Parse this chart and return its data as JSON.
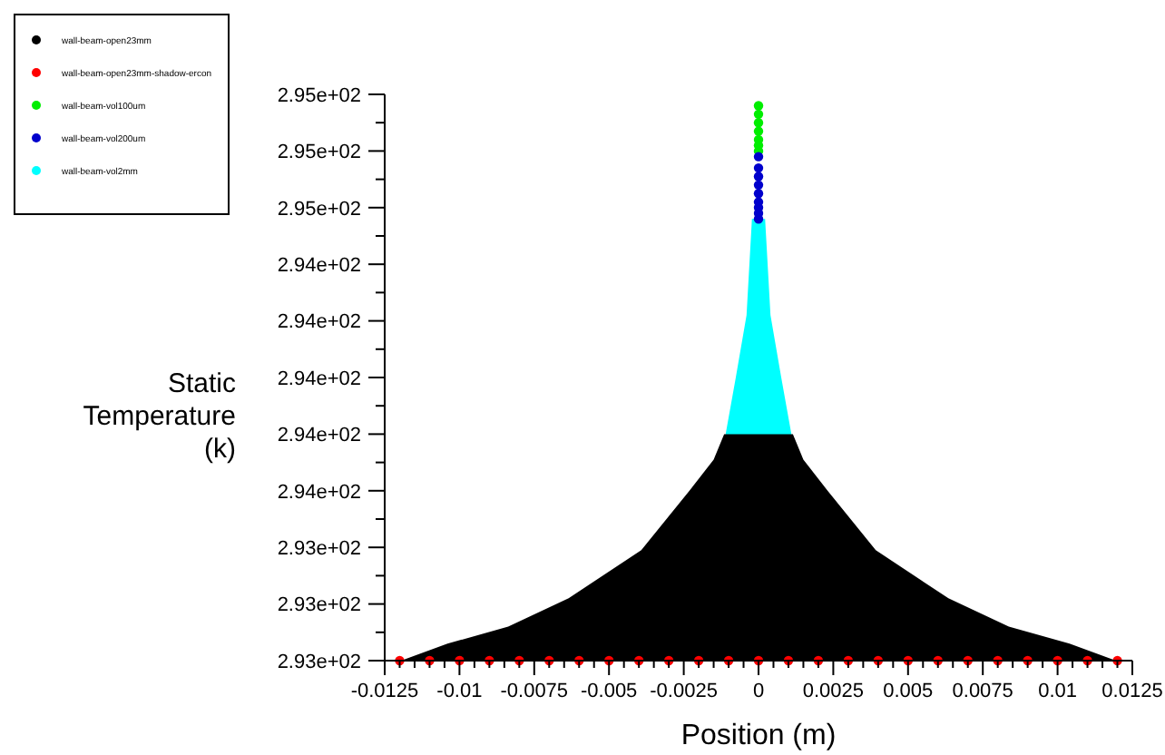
{
  "chart_data": {
    "type": "scatter",
    "xlabel": "Position (m)",
    "ylabel": "Static Temperature (k)",
    "legend": "top left",
    "grid": false,
    "xlim": [
      -0.0125,
      0.0125
    ],
    "xticks": [
      -0.0125,
      -0.01,
      -0.0075,
      -0.005,
      -0.0025,
      0,
      0.0025,
      0.005,
      0.0075,
      0.01,
      0.0125,
      {
        "value": -0.012,
        "label": null
      },
      {
        "value": -0.0115,
        "label": null
      },
      {
        "value": -0.011,
        "label": null
      },
      {
        "value": -0.0105,
        "label": null
      },
      {
        "value": -0.0095,
        "label": null
      },
      {
        "value": -0.009,
        "label": null
      },
      {
        "value": -0.0085,
        "label": null
      },
      {
        "value": -0.008,
        "label": null
      },
      {
        "value": -0.007,
        "label": null
      },
      {
        "value": -0.0065,
        "label": null
      },
      {
        "value": -0.006,
        "label": null
      },
      {
        "value": -0.0055,
        "label": null
      },
      {
        "value": -0.0045,
        "label": null
      },
      {
        "value": -0.004,
        "label": null
      },
      {
        "value": -0.0035,
        "label": null
      },
      {
        "value": -0.003,
        "label": null
      },
      {
        "value": -0.002,
        "label": null
      },
      {
        "value": -0.0015,
        "label": null
      },
      {
        "value": -0.001,
        "label": null
      },
      {
        "value": -0.0005,
        "label": null
      },
      {
        "value": 0.0005,
        "label": null
      },
      {
        "value": 0.001,
        "label": null
      },
      {
        "value": 0.0015,
        "label": null
      },
      {
        "value": 0.002,
        "label": null
      },
      {
        "value": 0.003,
        "label": null
      },
      {
        "value": 0.0035,
        "label": null
      },
      {
        "value": 0.004,
        "label": null
      },
      {
        "value": 0.0045,
        "label": null
      },
      {
        "value": 0.0055,
        "label": null
      },
      {
        "value": 0.006,
        "label": null
      },
      {
        "value": 0.0065,
        "label": null
      },
      {
        "value": 0.007,
        "label": null
      },
      {
        "value": 0.008,
        "label": null
      },
      {
        "value": 0.0085,
        "label": null
      },
      {
        "value": 0.009,
        "label": null
      },
      {
        "value": 0.0095,
        "label": null
      },
      {
        "value": 0.0105,
        "label": null
      },
      {
        "value": 0.011,
        "label": null
      },
      {
        "value": 0.0115,
        "label": null
      },
      {
        "value": 0.012,
        "label": null
      }
    ],
    "ylim": [
      293,
      295
    ],
    "yticks": [
      {
        "value": 293,
        "label": "2.93e+02"
      },
      {
        "value": 293.2,
        "label": "2.93e+02"
      },
      {
        "value": 293.4,
        "label": "2.93e+02"
      },
      {
        "value": 293.6,
        "label": "2.94e+02"
      },
      {
        "value": 293.8,
        "label": "2.94e+02"
      },
      {
        "value": 294,
        "label": "2.94e+02"
      },
      {
        "value": 294.2,
        "label": "2.94e+02"
      },
      {
        "value": 294.4,
        "label": "2.94e+02"
      },
      {
        "value": 294.6,
        "label": "2.95e+02"
      },
      {
        "value": 294.8,
        "label": "2.95e+02"
      },
      {
        "value": 295,
        "label": "2.95e+02"
      },
      {
        "value": 293.1,
        "label": null
      },
      {
        "value": 293.3,
        "label": null
      },
      {
        "value": 293.5,
        "label": null
      },
      {
        "value": 293.7,
        "label": null
      },
      {
        "value": 293.9,
        "label": null
      },
      {
        "value": 294.1,
        "label": null
      },
      {
        "value": 294.3,
        "label": null
      },
      {
        "value": 294.5,
        "label": null
      },
      {
        "value": 294.7,
        "label": null
      },
      {
        "value": 294.9,
        "label": null
      }
    ],
    "series": [
      {
        "name": "wall-beam-open23mm",
        "type": "area",
        "color": "#000000",
        "x": [
          -0.01195,
          -0.0104,
          -0.00837,
          -0.00635,
          -0.00392,
          -0.00231,
          -0.0015,
          -0.00115,
          0,
          0.00115,
          0.0015,
          0.00231,
          0.00392,
          0.00635,
          0.00837,
          0.0104,
          0.01195
        ],
        "values": [
          293.0,
          293.06,
          293.12,
          293.22,
          293.39,
          293.6,
          293.71,
          293.8,
          293.8,
          293.8,
          293.71,
          293.6,
          293.39,
          293.22,
          293.12,
          293.06,
          293.0
        ]
      },
      {
        "name": "wall-beam-open23mm-shadow-ercon",
        "marker": "circle",
        "color": "#ff0000",
        "x": [
          -0.012,
          -0.011,
          -0.01,
          -0.009,
          -0.008,
          -0.007,
          -0.006,
          -0.005,
          -0.004,
          -0.003,
          -0.002,
          -0.001,
          0,
          0.001,
          0.002,
          0.003,
          0.004,
          0.005,
          0.006,
          0.007,
          0.008,
          0.009,
          0.01,
          0.011,
          0.012
        ],
        "values": [
          293,
          293,
          293,
          293,
          293,
          293,
          293,
          293,
          293,
          293,
          293,
          293,
          293,
          293,
          293,
          293,
          293,
          293,
          293,
          293,
          293,
          293,
          293,
          293,
          293
        ]
      },
      {
        "name": "wall-beam-vol100um",
        "marker": "circle",
        "color": "#00ee00",
        "x": [
          0,
          0,
          0,
          0,
          0,
          0,
          0
        ],
        "values": [
          294.96,
          294.93,
          294.9,
          294.87,
          294.84,
          294.82,
          294.8
        ]
      },
      {
        "name": "wall-beam-vol200um",
        "marker": "circle",
        "color": "#0000cc",
        "x": [
          0,
          0,
          0,
          0,
          0,
          0,
          0,
          0,
          0
        ],
        "values": [
          294.78,
          294.74,
          294.71,
          294.68,
          294.65,
          294.62,
          294.6,
          294.58,
          294.56
        ]
      },
      {
        "name": "wall-beam-vol2mm",
        "type": "area",
        "color": "#00ffff",
        "x": [
          -0.0011,
          -0.00076,
          -0.0004,
          -0.00022,
          0,
          0.00022,
          0.0004,
          0.00076,
          0.0011
        ],
        "values": [
          293.8,
          294.0,
          294.22,
          294.56,
          294.56,
          294.56,
          294.22,
          294.0,
          293.8
        ]
      }
    ]
  }
}
